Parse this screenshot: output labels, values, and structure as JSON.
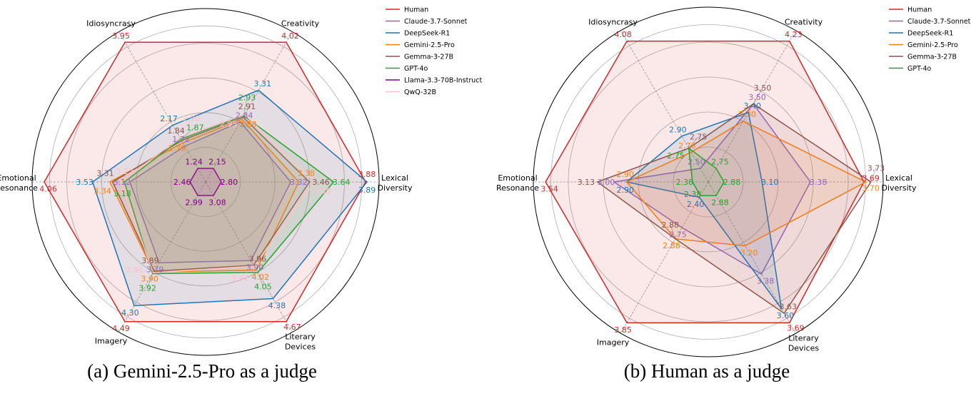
{
  "chart_data": [
    {
      "type": "radar",
      "caption": "(a) Gemini-2.5-Pro as a judge",
      "axes": [
        "Lexical Diversity",
        "Creativity",
        "Idiosyncrasy",
        "Emotional Resonance",
        "Imagery",
        "Literary Devices"
      ],
      "legend_position": "top-right",
      "grid": true,
      "series": [
        {
          "name": "Human",
          "color": "#d62728",
          "values": [
            3.88,
            4.02,
            3.95,
            4.06,
            4.49,
            4.67
          ]
        },
        {
          "name": "Claude-3.7-Sonnet",
          "color": "#9467bd",
          "values": [
            3.32,
            2.84,
            1.72,
            3.12,
            3.79,
            3.9
          ]
        },
        {
          "name": "DeepSeek-R1",
          "color": "#1f77b4",
          "values": [
            3.89,
            3.31,
            2.17,
            3.53,
            4.3,
            4.38
          ]
        },
        {
          "name": "Gemini-2.5-Pro",
          "color": "#ff7f0e",
          "values": [
            3.38,
            2.88,
            1.79,
            3.34,
            3.9,
            4.02
          ]
        },
        {
          "name": "Gemma-3-27B",
          "color": "#8c564b",
          "values": [
            3.46,
            2.91,
            1.84,
            3.31,
            3.89,
            3.96
          ]
        },
        {
          "name": "GPT-4o",
          "color": "#2ca02c",
          "values": [
            3.64,
            2.93,
            1.87,
            3.18,
            3.92,
            4.05
          ]
        },
        {
          "name": "Llama-3.3-70B-Instruct",
          "color": "#800080",
          "values": [
            2.8,
            2.15,
            1.24,
            2.46,
            2.99,
            3.08
          ]
        },
        {
          "name": "QwQ-32B",
          "color": "#ffc0cb",
          "values": [
            3.5,
            2.95,
            1.9,
            3.22,
            3.91,
            3.97
          ]
        }
      ]
    },
    {
      "type": "radar",
      "caption": "(b) Human as a judge",
      "axes": [
        "Lexical Diversity",
        "Creativity",
        "Idiosyncrasy",
        "Emotional Resonance",
        "Imagery",
        "Literary Devices"
      ],
      "legend_position": "top-right",
      "grid": true,
      "series": [
        {
          "name": "Human",
          "color": "#d62728",
          "values": [
            3.69,
            4.23,
            4.08,
            3.54,
            3.85,
            3.69
          ]
        },
        {
          "name": "Claude-3.7-Sonnet",
          "color": "#9467bd",
          "values": [
            3.38,
            3.5,
            2.5,
            3.0,
            2.75,
            3.38
          ]
        },
        {
          "name": "DeepSeek-R1",
          "color": "#1f77b4",
          "values": [
            3.1,
            3.4,
            2.9,
            2.9,
            2.4,
            3.6
          ]
        },
        {
          "name": "Gemini-2.5-Pro",
          "color": "#ff7f0e",
          "values": [
            3.7,
            3.3,
            2.7,
            2.9,
            2.88,
            3.2
          ]
        },
        {
          "name": "Gemma-3-27B",
          "color": "#8c564b",
          "values": [
            3.73,
            3.5,
            2.75,
            3.13,
            2.88,
            3.63
          ]
        },
        {
          "name": "GPT-4o",
          "color": "#2ca02c",
          "values": [
            2.88,
            2.75,
            2.75,
            2.38,
            2.38,
            2.88
          ]
        }
      ]
    }
  ]
}
